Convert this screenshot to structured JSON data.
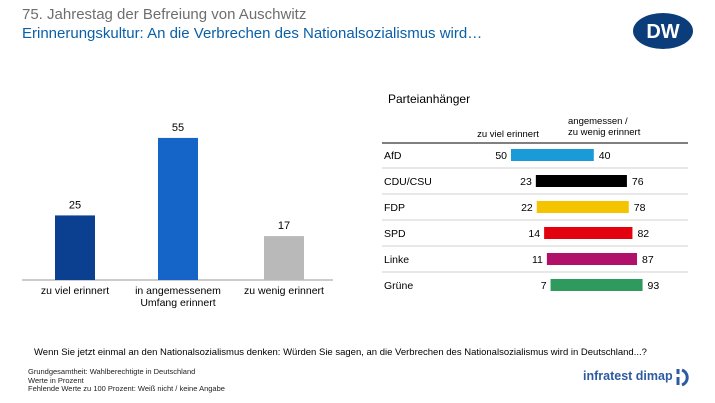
{
  "header": {
    "supertitle": "75. Jahrestag der Befreiung von Auschwitz",
    "title": "Erinnerungskultur: An die Verbrechen des Nationalsozialismus wird…",
    "logo_text": "DW",
    "logo_color": "#0a3d7a"
  },
  "question": "Wenn Sie jetzt einmal an den Nationalsozialismus denken: Würden Sie sagen, an die Verbrechen des Nationalsozialismus wird in Deutschland...?",
  "footnote": [
    "Grundgesamtheit:  Wahlberechtigte in Deutschland",
    "Werte in Prozent",
    "Fehlende Werte zu 100 Prozent: Weiß nicht / keine Angabe"
  ],
  "source_brand": "infratest dimap",
  "chart_data": [
    {
      "type": "bar",
      "categories": [
        "zu viel erinnert",
        "in angemessenem Umfang erinnert",
        "zu wenig erinnert"
      ],
      "category_lines": [
        [
          "zu viel erinnert"
        ],
        [
          "in angemessenem",
          "Umfang erinnert"
        ],
        [
          "zu wenig erinnert"
        ]
      ],
      "values": [
        25,
        55,
        17
      ],
      "colors": [
        "#0b3f8f",
        "#1565c8",
        "#b9b9b9"
      ],
      "ylim": [
        0,
        60
      ],
      "grid": false
    },
    {
      "type": "bar",
      "orientation": "horizontal-diverging",
      "title": "Parteianhänger",
      "column_headers": [
        "zu viel erinnert",
        "angemessen /\nzu wenig erinnert"
      ],
      "categories": [
        "AfD",
        "CDU/CSU",
        "FDP",
        "SPD",
        "Linke",
        "Grüne"
      ],
      "series": [
        {
          "name": "zu viel erinnert",
          "values": [
            50,
            23,
            22,
            14,
            11,
            7
          ]
        },
        {
          "name": "angemessen / zu wenig erinnert",
          "values": [
            40,
            76,
            78,
            82,
            87,
            93
          ]
        }
      ],
      "colors": [
        "#1a9ad6",
        "#000000",
        "#f5c400",
        "#e3000f",
        "#b1106a",
        "#2e9a5e"
      ],
      "grid": false
    }
  ]
}
